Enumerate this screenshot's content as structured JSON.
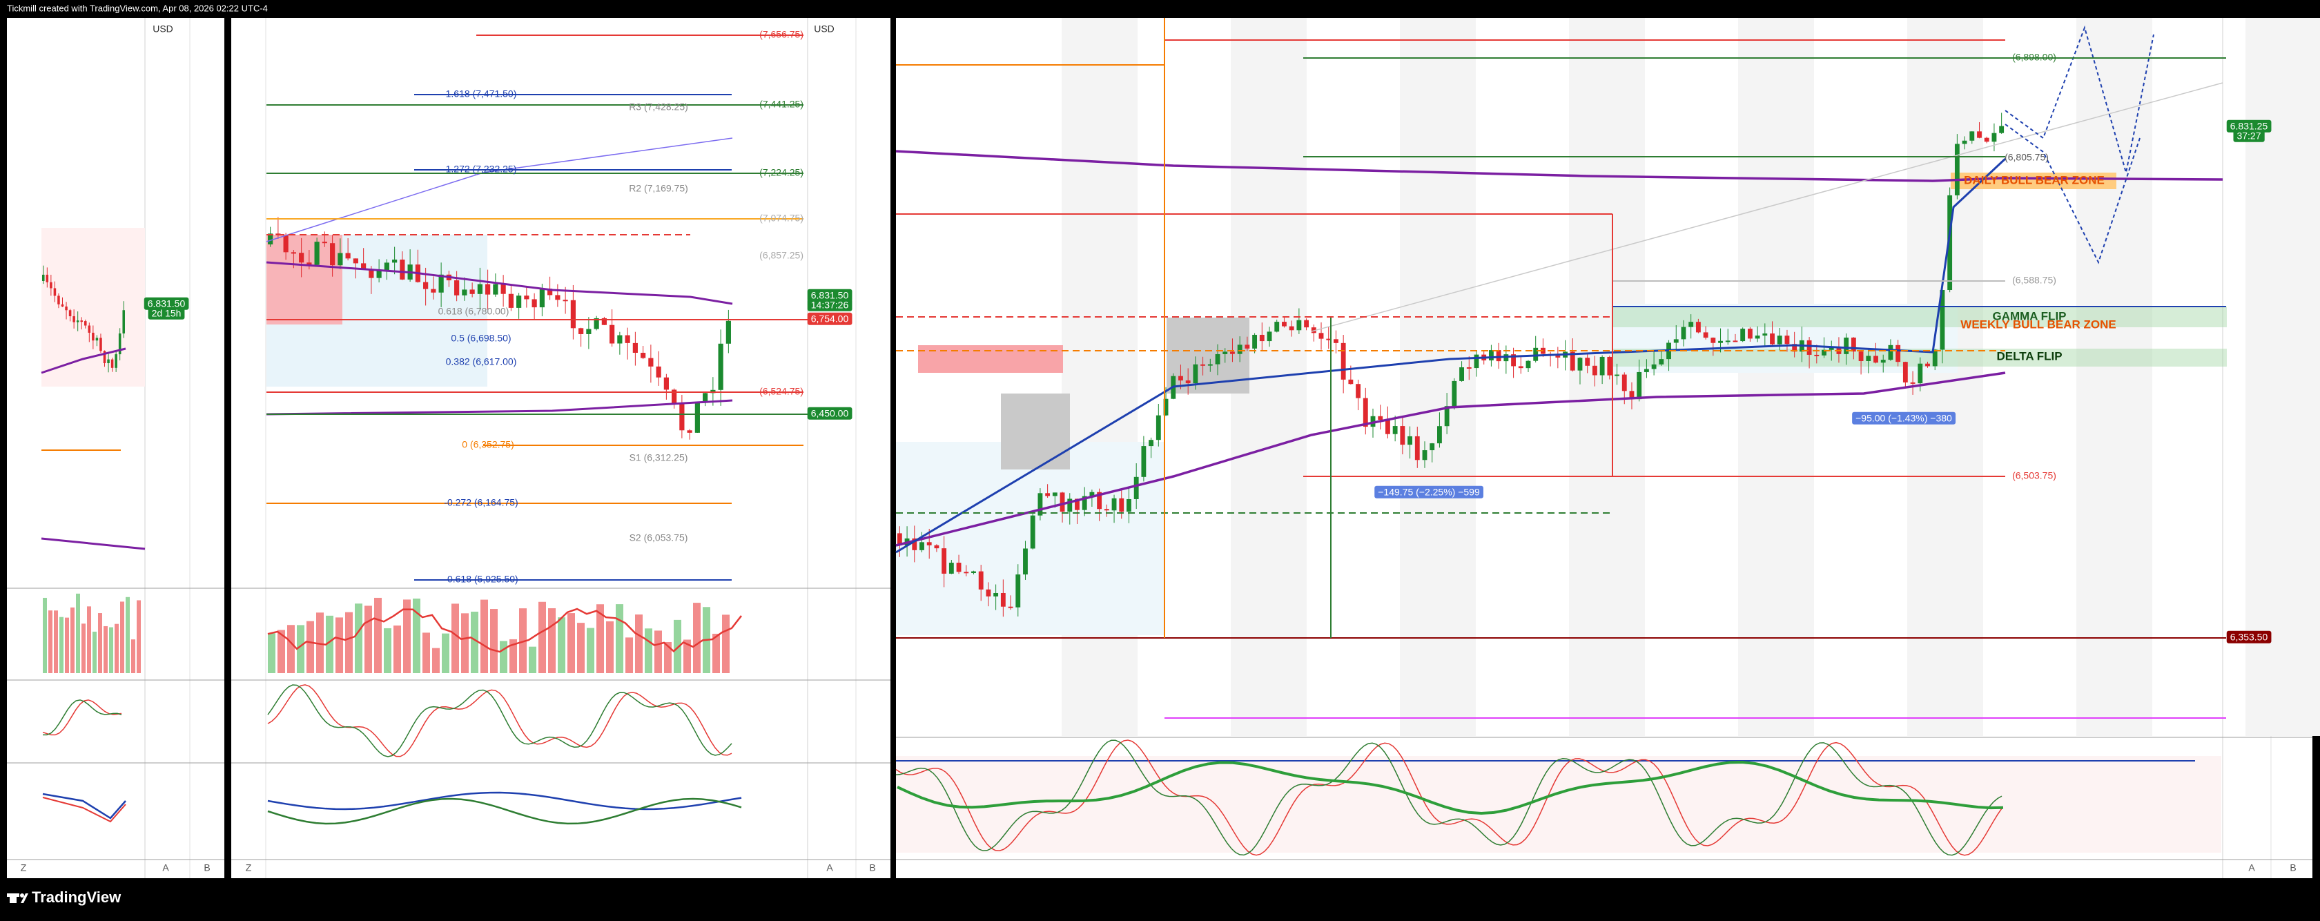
{
  "header": {
    "title": "Tickmill created with TradingView.com, Apr 08, 2026 02:22 UTC-4"
  },
  "footer": {
    "logo": "TradingView"
  },
  "panels": [
    {
      "currency": "USD",
      "price_tags": [
        "6,831.50",
        "2d 15h"
      ],
      "axis_buttons": [
        "Z",
        "A",
        "B"
      ]
    },
    {
      "currency": "USD",
      "levels": [
        "(7,656.75)",
        "1.618 (7,471.50)",
        "(7,441.25)",
        "R3 (7,428.25)",
        "1.272 (7,232.25)",
        "(7,224.25)",
        "R2 (7,169.75)",
        "(7,074.75)",
        "(6,857.25)",
        "0.618 (6,780.00)",
        "0.5 (6,698.50)",
        "0.382 (6,617.00)",
        "(6,524.75)",
        "0 (6,352.75)",
        "S1 (6,312.25)",
        "-0.272 (6,164.75)",
        "S2 (6,053.75)",
        "-0.618 (5,925.50)"
      ],
      "price_tags": [
        "6,831.50",
        "14:37:26",
        "6,754.00",
        "6,450.00"
      ],
      "axis_buttons": [
        "Z",
        "A",
        "B"
      ]
    },
    {
      "zones": [
        "DAILY BULL BEAR ZONE",
        "GAMMA FLIP",
        "WEEKLY BULL BEAR ZONE",
        "DELTA FLIP"
      ],
      "levels": [
        "(6,898.00)",
        "(6,805.75)",
        "(6,588.75)",
        "(6,503.75)"
      ],
      "measurements": [
        "−149.75 (−2.25%) −599",
        "−95.00 (−1.43%) −380"
      ],
      "price_tags": [
        "6,831.25",
        "37:27",
        "6,353.50"
      ],
      "axis_buttons": [
        "A",
        "B"
      ]
    }
  ]
}
